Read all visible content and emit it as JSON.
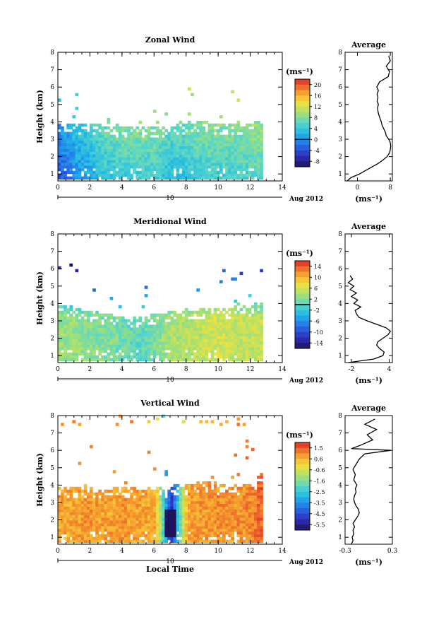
{
  "figure": {
    "date_label": "Aug 2012",
    "day_marker": "10",
    "bottom_xlabel": "Local Time",
    "ylabel": "Height (km)",
    "unit_label": "(ms⁻¹)",
    "average_title": "Average"
  },
  "chart_data": [
    {
      "type": "heatmap",
      "title": "Zonal Wind",
      "xlabel": "",
      "ylabel": "Height (km)",
      "x_ticks": [
        0,
        2,
        4,
        6,
        8,
        10,
        12,
        14
      ],
      "y_ticks": [
        1,
        2,
        3,
        4,
        5,
        6,
        7,
        8
      ],
      "xlim": [
        0,
        14
      ],
      "ylim": [
        0.6,
        8
      ],
      "data_end_time": 12.6,
      "colorbar": {
        "label": "(ms⁻¹)",
        "ticks": [
          "20",
          "16",
          "12",
          "8",
          "4",
          "0",
          "-4",
          "-8"
        ],
        "range": [
          -10,
          22
        ],
        "zero_line": 0
      },
      "top_height_km": [
        3.9,
        3.8,
        3.8,
        3.7,
        3.7,
        3.6,
        3.6,
        3.7,
        3.9,
        4.0,
        3.8,
        3.8,
        3.9,
        4.0
      ],
      "profile_time_h": [
        0,
        1,
        2,
        3,
        4,
        5,
        6,
        7,
        8,
        9,
        10,
        11,
        12,
        12.5
      ],
      "profile_wind_ms": [
        -2,
        1,
        3,
        5,
        6,
        6,
        6,
        4,
        5,
        6,
        6,
        6,
        7,
        7
      ],
      "average_profile": {
        "title": "Average",
        "xlabel": "(ms⁻¹)",
        "x_ticks": [
          0,
          8
        ],
        "xlim": [
          -3,
          8.5
        ],
        "height_km": [
          0.6,
          0.8,
          1.0,
          1.2,
          1.4,
          1.6,
          1.8,
          2.0,
          2.2,
          2.4,
          2.6,
          2.8,
          3.0,
          3.2,
          3.4,
          3.6,
          3.8,
          4.0,
          4.2,
          4.4,
          4.6,
          4.8,
          5.0,
          5.2,
          5.4,
          5.6,
          5.8,
          6.0,
          6.3,
          6.6,
          6.9,
          7.2,
          7.5,
          7.8
        ],
        "wind_ms": [
          -2.5,
          -1.5,
          0.5,
          2.0,
          3.5,
          5.0,
          6.2,
          7.2,
          7.8,
          8.0,
          8.1,
          8.0,
          7.6,
          7.0,
          6.8,
          6.4,
          6.0,
          5.8,
          5.5,
          5.2,
          5.0,
          4.9,
          5.1,
          4.8,
          5.0,
          4.8,
          5.1,
          4.7,
          5.4,
          7.5,
          7.8,
          7.0,
          8.0,
          7.6
        ]
      }
    },
    {
      "type": "heatmap",
      "title": "Meridional Wind",
      "xlabel": "",
      "ylabel": "Height (km)",
      "x_ticks": [
        0,
        2,
        4,
        6,
        8,
        10,
        12,
        14
      ],
      "y_ticks": [
        1,
        2,
        3,
        4,
        5,
        6,
        7,
        8
      ],
      "xlim": [
        0,
        14
      ],
      "ylim": [
        0.6,
        8
      ],
      "data_end_time": 12.6,
      "colorbar": {
        "label": "(ms⁻¹)",
        "ticks": [
          "14",
          "10",
          "6",
          "2",
          "-2",
          "-6",
          "-10",
          "-14"
        ],
        "range": [
          -16,
          16
        ],
        "zero_line": 0
      },
      "top_height_km": [
        3.9,
        3.7,
        3.5,
        3.3,
        3.2,
        3.2,
        3.3,
        3.5,
        3.6,
        3.6,
        3.6,
        3.7,
        3.8,
        4.1
      ],
      "profile_time_h": [
        0,
        1,
        2,
        3,
        4,
        5,
        6,
        7,
        8,
        9,
        10,
        11,
        12,
        12.5
      ],
      "profile_wind_ms": [
        3,
        3,
        2,
        2,
        1,
        0,
        2,
        4,
        4,
        5,
        6,
        5,
        5,
        5
      ],
      "average_profile": {
        "title": "Average",
        "xlabel": "(ms⁻¹)",
        "x_ticks": [
          -2,
          4
        ],
        "xlim": [
          -3,
          4.5
        ],
        "height_km": [
          0.6,
          0.8,
          1.0,
          1.2,
          1.4,
          1.6,
          1.8,
          2.0,
          2.2,
          2.4,
          2.6,
          2.8,
          3.0,
          3.2,
          3.4,
          3.6,
          3.8,
          4.0,
          4.2,
          4.4,
          4.6,
          4.8,
          5.0,
          5.2,
          5.4,
          5.6
        ],
        "wind_ms": [
          -2.5,
          1.5,
          3.0,
          3.2,
          2.5,
          2.0,
          2.2,
          3.0,
          3.8,
          4.2,
          3.5,
          2.0,
          0.5,
          -0.8,
          -1.2,
          -1.4,
          -0.5,
          -1.6,
          -1.0,
          -2.0,
          -1.2,
          -2.2,
          -1.6,
          -2.5,
          -1.8,
          -2.2
        ]
      }
    },
    {
      "type": "heatmap",
      "title": "Vertical Wind",
      "xlabel": "Local Time",
      "ylabel": "Height (km)",
      "x_ticks": [
        0,
        2,
        4,
        6,
        8,
        10,
        12,
        14
      ],
      "y_ticks": [
        1,
        2,
        3,
        4,
        5,
        6,
        7,
        8
      ],
      "xlim": [
        0,
        14
      ],
      "ylim": [
        0.6,
        8
      ],
      "data_end_time": 12.6,
      "colorbar": {
        "label": "(ms⁻¹)",
        "ticks": [
          "1.5",
          "0.6",
          "-0.6",
          "-1.6",
          "-2.5",
          "-3.5",
          "-4.5",
          "-5.5"
        ],
        "range": [
          -6,
          2
        ],
        "zero_line": null
      },
      "top_height_km": [
        3.9,
        3.8,
        3.8,
        3.7,
        3.8,
        3.8,
        3.7,
        3.9,
        4.0,
        4.1,
        4.0,
        4.0,
        4.1,
        4.6
      ],
      "profile_time_h": [
        0,
        1,
        2,
        3,
        4,
        5,
        6,
        7,
        8,
        9,
        10,
        11,
        12,
        12.5
      ],
      "profile_wind_ms": [
        0.6,
        0.7,
        0.8,
        0.7,
        0.8,
        0.7,
        0.6,
        -5.0,
        0.7,
        0.8,
        0.9,
        0.9,
        1.0,
        1.4
      ],
      "average_profile": {
        "title": "Average",
        "xlabel": "(ms⁻¹)",
        "x_ticks": [
          -0.3,
          0.3
        ],
        "xlim": [
          -0.3,
          0.3
        ],
        "height_km": [
          0.6,
          0.8,
          1.0,
          1.2,
          1.4,
          1.6,
          1.8,
          2.0,
          2.2,
          2.4,
          2.6,
          2.8,
          3.0,
          3.2,
          3.4,
          3.6,
          3.8,
          4.0,
          4.3,
          4.6,
          4.9,
          5.2,
          5.5,
          5.8,
          6.0,
          6.1,
          6.3,
          6.6,
          6.9,
          7.2,
          7.5,
          7.8
        ],
        "wind_ms": [
          -0.22,
          -0.2,
          -0.21,
          -0.19,
          -0.2,
          -0.18,
          -0.2,
          -0.17,
          -0.14,
          -0.12,
          -0.13,
          -0.16,
          -0.18,
          -0.19,
          -0.18,
          -0.16,
          -0.17,
          -0.15,
          -0.19,
          -0.17,
          -0.2,
          -0.16,
          -0.12,
          -0.05,
          0.28,
          -0.22,
          -0.1,
          0.05,
          -0.02,
          0.1,
          -0.05,
          0.08
        ]
      }
    }
  ]
}
